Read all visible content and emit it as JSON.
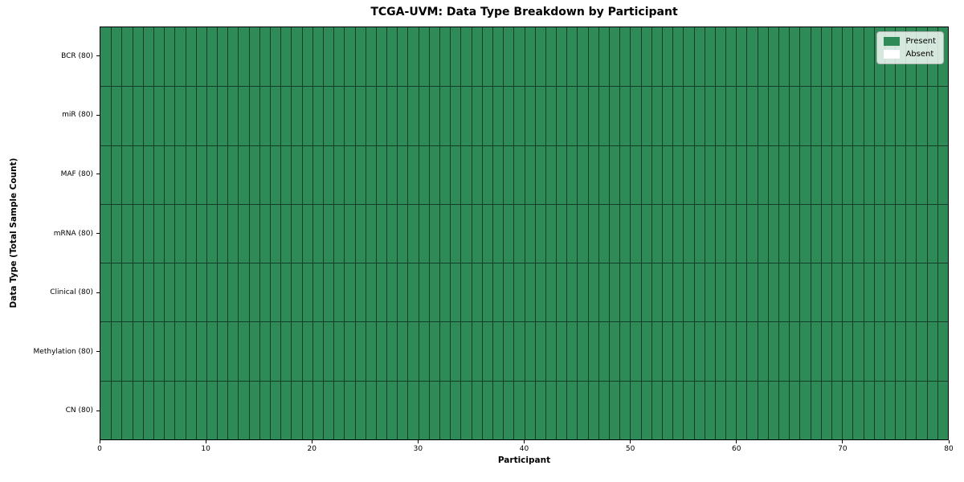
{
  "chart_data": {
    "type": "heatmap",
    "title": "TCGA-UVM: Data Type Breakdown by Participant",
    "xlabel": "Participant",
    "ylabel": "Data Type (Total Sample Count)",
    "x_range": [
      0,
      80
    ],
    "x_ticks": [
      0,
      10,
      20,
      30,
      40,
      50,
      60,
      70,
      80
    ],
    "n_participants": 80,
    "cell_values": "all_present",
    "rows": [
      {
        "label": "BCR (80)",
        "data_type": "BCR",
        "total_samples": 80,
        "present_count": 80,
        "absent_count": 0
      },
      {
        "label": "miR (80)",
        "data_type": "miR",
        "total_samples": 80,
        "present_count": 80,
        "absent_count": 0
      },
      {
        "label": "MAF (80)",
        "data_type": "MAF",
        "total_samples": 80,
        "present_count": 80,
        "absent_count": 0
      },
      {
        "label": "mRNA (80)",
        "data_type": "mRNA",
        "total_samples": 80,
        "present_count": 80,
        "absent_count": 0
      },
      {
        "label": "Clinical (80)",
        "data_type": "Clinical",
        "total_samples": 80,
        "present_count": 80,
        "absent_count": 0
      },
      {
        "label": "Methylation (80)",
        "data_type": "Methylation",
        "total_samples": 80,
        "present_count": 80,
        "absent_count": 0
      },
      {
        "label": "CN (80)",
        "data_type": "CN",
        "total_samples": 80,
        "present_count": 80,
        "absent_count": 0
      }
    ],
    "legend": {
      "position": "upper right",
      "entries": [
        {
          "label": "Present",
          "color": "#2e8b57"
        },
        {
          "label": "Absent",
          "color": "#ffffff"
        }
      ]
    },
    "colors": {
      "present": "#2e8b57",
      "absent": "#ffffff"
    },
    "grid": "cell-borders",
    "background": "#ffffff"
  }
}
